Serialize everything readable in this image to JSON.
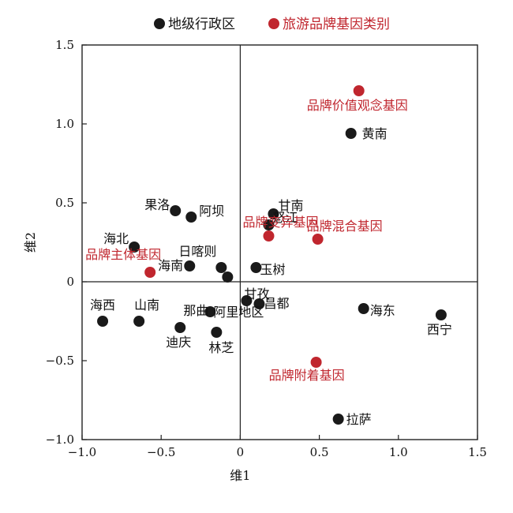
{
  "chart_data": {
    "type": "scatter",
    "xlabel": "维1",
    "ylabel": "维2",
    "xlim": [
      -1.0,
      1.5
    ],
    "ylim": [
      -1.0,
      1.5
    ],
    "x_ticks": [
      "−1.0",
      "−0.5",
      "0",
      "0.5",
      "1.0",
      "1.5"
    ],
    "y_ticks": [
      "−1.0",
      "−0.5",
      "0",
      "0.5",
      "1.0",
      "1.5"
    ],
    "reference_lines": {
      "x": 0,
      "y": 0
    },
    "grid": false,
    "legend_position": "top-center",
    "series": [
      {
        "name": "地级行政区",
        "color": "#1a1a1a",
        "points": [
          {
            "label": "黄南",
            "x": 0.7,
            "y": 0.94
          },
          {
            "label": "果洛",
            "x": -0.41,
            "y": 0.45
          },
          {
            "label": "阿坝",
            "x": -0.31,
            "y": 0.41
          },
          {
            "label": "甘南",
            "x": 0.21,
            "y": 0.43
          },
          {
            "label": "怒江",
            "x": 0.18,
            "y": 0.36
          },
          {
            "label": "海北",
            "x": -0.67,
            "y": 0.22
          },
          {
            "label": "日喀则",
            "x": -0.12,
            "y": 0.09
          },
          {
            "label": "",
            "x": -0.32,
            "y": 0.1
          },
          {
            "label": "",
            "x": -0.08,
            "y": 0.03
          },
          {
            "label": "玉树",
            "x": 0.1,
            "y": 0.09
          },
          {
            "label": "阿里地区",
            "x": 0.04,
            "y": -0.12
          },
          {
            "label": "甘孜",
            "x": 0.12,
            "y": -0.14
          },
          {
            "label": "海西",
            "x": -0.87,
            "y": -0.25
          },
          {
            "label": "山南",
            "x": -0.64,
            "y": -0.25
          },
          {
            "label": "那曲",
            "x": -0.19,
            "y": -0.19
          },
          {
            "label": "迪庆",
            "x": -0.38,
            "y": -0.29
          },
          {
            "label": "林芝",
            "x": -0.15,
            "y": -0.32
          },
          {
            "label": "海东",
            "x": 0.78,
            "y": -0.17
          },
          {
            "label": "西宁",
            "x": 1.27,
            "y": -0.21
          },
          {
            "label": "拉萨",
            "x": 0.62,
            "y": -0.87
          }
        ]
      },
      {
        "name": "旅游品牌基因类别",
        "color": "#c0262e",
        "points": [
          {
            "label": "品牌价值观念基因",
            "x": 0.75,
            "y": 1.21
          },
          {
            "label": "品牌混合基因",
            "x": 0.49,
            "y": 0.27
          },
          {
            "label": "品牌变异基因",
            "x": 0.18,
            "y": 0.29
          },
          {
            "label": "品牌主体基因",
            "x": -0.57,
            "y": 0.06
          },
          {
            "label": "品牌附着基因",
            "x": 0.48,
            "y": -0.51
          }
        ]
      }
    ],
    "extra_labels": [
      {
        "text": "海南",
        "series": 0
      },
      {
        "text": "昌都",
        "series": 0
      }
    ]
  }
}
